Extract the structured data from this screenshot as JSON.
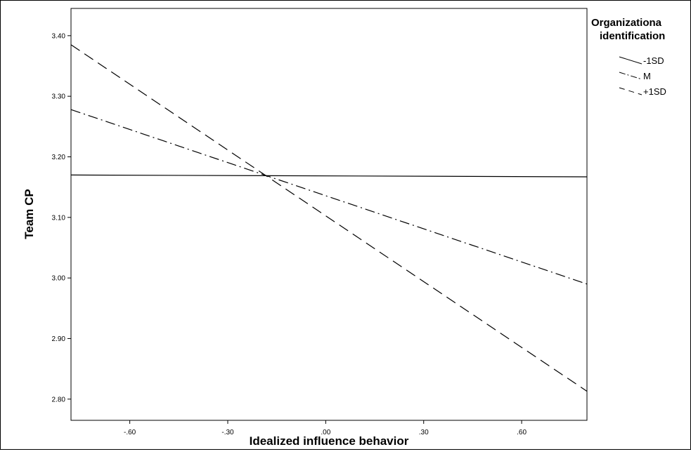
{
  "chart_data": {
    "type": "line",
    "xlabel": "Idealized influence behavior",
    "ylabel": "Team CP",
    "x_ticks": [
      {
        "value": -0.6,
        "label": "-.60"
      },
      {
        "value": -0.3,
        "label": "-.30"
      },
      {
        "value": 0.0,
        "label": ".00"
      },
      {
        "value": 0.3,
        "label": ".30"
      },
      {
        "value": 0.6,
        "label": ".60"
      }
    ],
    "y_ticks": [
      {
        "value": 2.8,
        "label": "2.80"
      },
      {
        "value": 2.9,
        "label": "2.90"
      },
      {
        "value": 3.0,
        "label": "3.00"
      },
      {
        "value": 3.1,
        "label": "3.10"
      },
      {
        "value": 3.2,
        "label": "3.20"
      },
      {
        "value": 3.3,
        "label": "3.30"
      },
      {
        "value": 3.4,
        "label": "3.40"
      }
    ],
    "xlim": [
      -0.78,
      0.8
    ],
    "ylim": [
      2.765,
      3.445
    ],
    "grid": false,
    "legend": {
      "title_lines": [
        "Organizationa",
        "identification"
      ],
      "placement": "right"
    },
    "series": [
      {
        "name": "-1SD",
        "dash": "solid",
        "x": [
          -0.78,
          0.8
        ],
        "y": [
          3.17,
          3.167
        ]
      },
      {
        "name": "M",
        "dash": "dashdot",
        "x": [
          -0.78,
          0.8
        ],
        "y": [
          3.278,
          2.99
        ]
      },
      {
        "name": "+1SD",
        "dash": "dashed",
        "x": [
          -0.78,
          0.8
        ],
        "y": [
          3.385,
          2.813
        ]
      }
    ]
  }
}
